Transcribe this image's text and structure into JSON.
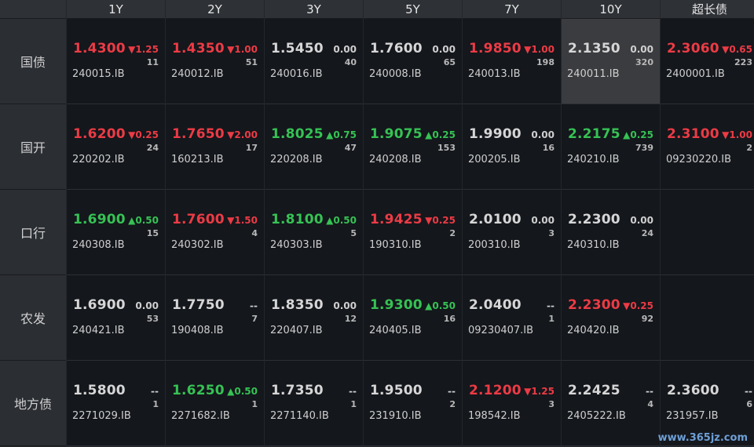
{
  "columns": [
    "1Y",
    "2Y",
    "3Y",
    "5Y",
    "7Y",
    "10Y",
    "超长债"
  ],
  "watermark": "www.365jz.com",
  "colors": {
    "up": "#ec3b45",
    "down": "#36c254",
    "flat": "#d6d6d6"
  },
  "rows": [
    {
      "label": "国债",
      "cells": [
        {
          "price": "1.4300",
          "change": "▼1.25",
          "volume": "11",
          "code": "240015.IB",
          "dir": "up"
        },
        {
          "price": "1.4350",
          "change": "▼1.00",
          "volume": "51",
          "code": "240012.IB",
          "dir": "up"
        },
        {
          "price": "1.5450",
          "change": "0.00",
          "volume": "40",
          "code": "240016.IB",
          "dir": "flat"
        },
        {
          "price": "1.7600",
          "change": "0.00",
          "volume": "65",
          "code": "240008.IB",
          "dir": "flat"
        },
        {
          "price": "1.9850",
          "change": "▼1.00",
          "volume": "198",
          "code": "240013.IB",
          "dir": "up"
        },
        {
          "price": "2.1350",
          "change": "0.00",
          "volume": "320",
          "code": "240011.IB",
          "dir": "flat",
          "highlight": true
        },
        {
          "price": "2.3060",
          "change": "▼0.65",
          "volume": "223",
          "code": "2400001.IB",
          "dir": "up"
        }
      ]
    },
    {
      "label": "国开",
      "cells": [
        {
          "price": "1.6200",
          "change": "▼0.25",
          "volume": "24",
          "code": "220202.IB",
          "dir": "up"
        },
        {
          "price": "1.7650",
          "change": "▼2.00",
          "volume": "17",
          "code": "160213.IB",
          "dir": "up"
        },
        {
          "price": "1.8025",
          "change": "▲0.75",
          "volume": "47",
          "code": "220208.IB",
          "dir": "down"
        },
        {
          "price": "1.9075",
          "change": "▲0.25",
          "volume": "153",
          "code": "240208.IB",
          "dir": "down"
        },
        {
          "price": "1.9900",
          "change": "0.00",
          "volume": "16",
          "code": "200205.IB",
          "dir": "flat"
        },
        {
          "price": "2.2175",
          "change": "▲0.25",
          "volume": "739",
          "code": "240210.IB",
          "dir": "down"
        },
        {
          "price": "2.3100",
          "change": "▼1.00",
          "volume": "2",
          "code": "09230220.IB",
          "dir": "up"
        }
      ]
    },
    {
      "label": "口行",
      "cells": [
        {
          "price": "1.6900",
          "change": "▲0.50",
          "volume": "15",
          "code": "240308.IB",
          "dir": "down"
        },
        {
          "price": "1.7600",
          "change": "▼1.50",
          "volume": "4",
          "code": "240302.IB",
          "dir": "up"
        },
        {
          "price": "1.8100",
          "change": "▲0.50",
          "volume": "5",
          "code": "240303.IB",
          "dir": "down"
        },
        {
          "price": "1.9425",
          "change": "▼0.25",
          "volume": "2",
          "code": "190310.IB",
          "dir": "up"
        },
        {
          "price": "2.0100",
          "change": "0.00",
          "volume": "3",
          "code": "200310.IB",
          "dir": "flat"
        },
        {
          "price": "2.2300",
          "change": "0.00",
          "volume": "24",
          "code": "240310.IB",
          "dir": "flat"
        },
        null
      ]
    },
    {
      "label": "农发",
      "cells": [
        {
          "price": "1.6900",
          "change": "0.00",
          "volume": "53",
          "code": "240421.IB",
          "dir": "flat"
        },
        {
          "price": "1.7750",
          "change": "--",
          "volume": "7",
          "code": "190408.IB",
          "dir": "flat"
        },
        {
          "price": "1.8350",
          "change": "0.00",
          "volume": "12",
          "code": "220407.IB",
          "dir": "flat"
        },
        {
          "price": "1.9300",
          "change": "▲0.50",
          "volume": "16",
          "code": "240405.IB",
          "dir": "down"
        },
        {
          "price": "2.0400",
          "change": "--",
          "volume": "1",
          "code": "09230407.IB",
          "dir": "flat"
        },
        {
          "price": "2.2300",
          "change": "▼0.25",
          "volume": "92",
          "code": "240420.IB",
          "dir": "up"
        },
        null
      ]
    },
    {
      "label": "地方债",
      "cells": [
        {
          "price": "1.5800",
          "change": "--",
          "volume": "1",
          "code": "2271029.IB",
          "dir": "flat"
        },
        {
          "price": "1.6250",
          "change": "▲0.50",
          "volume": "1",
          "code": "2271682.IB",
          "dir": "down"
        },
        {
          "price": "1.7350",
          "change": "--",
          "volume": "1",
          "code": "2271140.IB",
          "dir": "flat"
        },
        {
          "price": "1.9500",
          "change": "--",
          "volume": "2",
          "code": "231910.IB",
          "dir": "flat"
        },
        {
          "price": "2.1200",
          "change": "▼1.25",
          "volume": "3",
          "code": "198542.IB",
          "dir": "up"
        },
        {
          "price": "2.2425",
          "change": "--",
          "volume": "4",
          "code": "2405222.IB",
          "dir": "flat"
        },
        {
          "price": "2.3600",
          "change": "--",
          "volume": "6",
          "code": "231957.IB",
          "dir": "flat"
        }
      ]
    }
  ]
}
